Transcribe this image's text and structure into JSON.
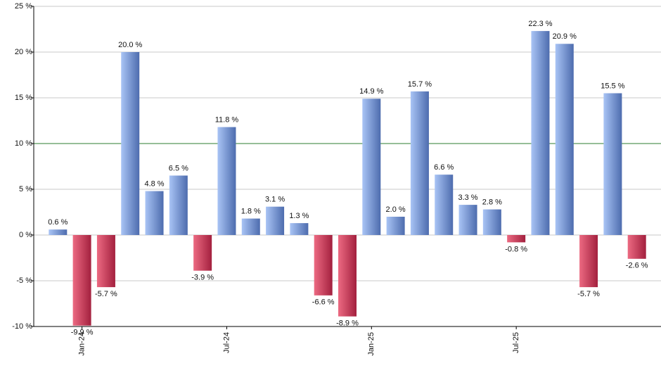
{
  "chart_data": {
    "type": "bar",
    "categories": [
      null,
      "Jan-24",
      null,
      null,
      null,
      null,
      null,
      "Jul-24",
      null,
      null,
      null,
      null,
      null,
      "Jan-25",
      null,
      null,
      null,
      null,
      null,
      "Jul-25",
      null,
      null,
      null,
      null,
      null
    ],
    "values": [
      0.6,
      -9.9,
      -5.7,
      20.0,
      4.8,
      6.5,
      -3.9,
      11.8,
      1.8,
      3.1,
      1.3,
      -6.6,
      -8.9,
      14.9,
      2.0,
      15.7,
      6.6,
      3.3,
      2.8,
      -0.8,
      22.3,
      20.9,
      -5.7,
      15.5,
      -2.6
    ],
    "value_labels": [
      "0.6 %",
      "-9.9 %",
      "-5.7 %",
      "20.0 %",
      "4.8 %",
      "6.5 %",
      "-3.9 %",
      "11.8 %",
      "1.8 %",
      "3.1 %",
      "1.3 %",
      "-6.6 %",
      "-8.9 %",
      "14.9 %",
      "2.0 %",
      "15.7 %",
      "6.6 %",
      "3.3 %",
      "2.8 %",
      "-0.8 %",
      "22.3 %",
      "20.9 %",
      "-5.7 %",
      "15.5 %",
      "-2.6 %"
    ],
    "positive_colors": [
      "#a9c4f5",
      "#4d6cae"
    ],
    "negative_colors": [
      "#ec6a82",
      "#a3203e"
    ],
    "ylim": [
      -10,
      25
    ],
    "yticks": [
      {
        "value": -10,
        "label": "-10 %"
      },
      {
        "value": -5,
        "label": "-5 %"
      },
      {
        "value": 0,
        "label": "0 %"
      },
      {
        "value": 5,
        "label": "5 %"
      },
      {
        "value": 10,
        "label": "10 %"
      },
      {
        "value": 15,
        "label": "15 %"
      },
      {
        "value": 20,
        "label": "20 %"
      },
      {
        "value": 25,
        "label": "25 %"
      }
    ],
    "grid": true,
    "reference_line": {
      "value": 10,
      "color": "#2e7d32"
    }
  }
}
